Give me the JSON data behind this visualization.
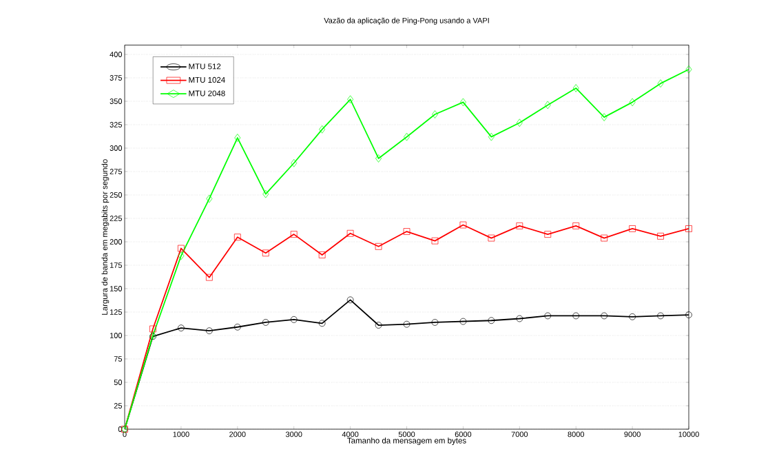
{
  "chart_data": {
    "type": "line",
    "title": "Vazão da aplicação de Ping-Pong usando a VAPI",
    "xlabel": "Tamanho da mensagem em bytes",
    "ylabel": "Largura de banda em megabits por segundo",
    "x": [
      0,
      500,
      1000,
      1500,
      2000,
      2500,
      3000,
      3500,
      4000,
      4500,
      5000,
      5500,
      6000,
      6500,
      7000,
      7500,
      8000,
      8500,
      9000,
      9500,
      10000
    ],
    "series": [
      {
        "name": "MTU 512",
        "color": "#000000",
        "marker": "circle",
        "values": [
          0,
          99,
          108,
          105,
          109,
          114,
          117,
          113,
          138,
          111,
          112,
          114,
          115,
          116,
          118,
          121,
          121,
          121,
          120,
          121,
          122
        ]
      },
      {
        "name": "MTU 1024",
        "color": "#ff0000",
        "marker": "square",
        "values": [
          0,
          107,
          193,
          162,
          205,
          188,
          208,
          186,
          209,
          195,
          211,
          201,
          218,
          204,
          217,
          208,
          217,
          204,
          214,
          206,
          214
        ]
      },
      {
        "name": "MTU 2048",
        "color": "#00ff00",
        "marker": "diamond",
        "values": [
          0,
          100,
          185,
          246,
          311,
          251,
          284,
          320,
          352,
          289,
          312,
          336,
          349,
          312,
          327,
          346,
          364,
          333,
          349,
          369,
          384
        ]
      }
    ],
    "xlim": [
      0,
      10000
    ],
    "xticks": [
      0,
      1000,
      2000,
      3000,
      4000,
      5000,
      6000,
      7000,
      8000,
      9000,
      10000
    ],
    "ylim": [
      0,
      410
    ],
    "yticks": [
      0,
      25,
      50,
      75,
      100,
      125,
      150,
      175,
      200,
      225,
      250,
      275,
      300,
      325,
      350,
      375,
      400
    ],
    "grid": "y",
    "legend": "top left",
    "line_style": "solid"
  }
}
